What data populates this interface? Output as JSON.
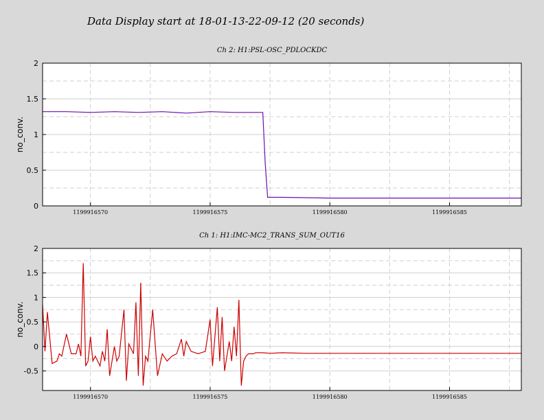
{
  "page": {
    "title": "Data Display start at 18-01-13-22-09-12 (20 seconds)"
  },
  "chart_data": [
    {
      "type": "line",
      "title": "Ch 2: H1:PSL-OSC_PDLOCKDC",
      "ylabel": "no_conv.",
      "xlabel": "",
      "xlim": [
        1199916568,
        1199916588
      ],
      "ylim": [
        0,
        2
      ],
      "xticks": [
        1199916570,
        1199916575,
        1199916580,
        1199916585
      ],
      "xtick_labels": [
        "1199916570",
        "1199916575",
        "1199916580",
        "1199916585"
      ],
      "yticks": [
        0,
        0.5,
        1,
        1.5,
        2
      ],
      "ytick_labels": [
        "0",
        "0.5",
        "1",
        "1.5",
        "2"
      ],
      "grid": true,
      "series": [
        {
          "color": "#6a0dad",
          "x": [
            1199916568,
            1199916569,
            1199916570,
            1199916571,
            1199916572,
            1199916573,
            1199916574,
            1199916575,
            1199916576,
            1199916577.2,
            1199916577.3,
            1199916577.4,
            1199916578,
            1199916580,
            1199916582,
            1199916584,
            1199916586,
            1199916588
          ],
          "y": [
            1.32,
            1.32,
            1.31,
            1.32,
            1.31,
            1.32,
            1.3,
            1.32,
            1.31,
            1.31,
            0.6,
            0.12,
            0.12,
            0.11,
            0.11,
            0.11,
            0.11,
            0.11
          ]
        }
      ]
    },
    {
      "type": "line",
      "title": "Ch 1: H1:IMC-MC2_TRANS_SUM_OUT16",
      "ylabel": "no_conv.",
      "xlabel": "",
      "xlim": [
        1199916568,
        1199916588
      ],
      "ylim": [
        -0.9,
        2
      ],
      "xticks": [
        1199916570,
        1199916575,
        1199916580,
        1199916585
      ],
      "xtick_labels": [
        "1199916570",
        "1199916575",
        "1199916580",
        "1199916585"
      ],
      "yticks": [
        -0.5,
        0,
        0.5,
        1,
        1.5,
        2
      ],
      "ytick_labels": [
        "-0.5",
        "0",
        "0.5",
        "1",
        "1.5",
        "2"
      ],
      "grid": true,
      "series": [
        {
          "color": "#cc0000",
          "x": [
            1199916568,
            1199916568.1,
            1199916568.2,
            1199916568.4,
            1199916568.6,
            1199916568.7,
            1199916568.8,
            1199916569,
            1199916569.2,
            1199916569.4,
            1199916569.5,
            1199916569.6,
            1199916569.7,
            1199916569.8,
            1199916569.9,
            1199916570,
            1199916570.1,
            1199916570.2,
            1199916570.4,
            1199916570.5,
            1199916570.6,
            1199916570.7,
            1199916570.8,
            1199916571,
            1199916571.1,
            1199916571.2,
            1199916571.4,
            1199916571.5,
            1199916571.6,
            1199916571.8,
            1199916571.9,
            1199916572,
            1199916572.1,
            1199916572.2,
            1199916572.3,
            1199916572.4,
            1199916572.6,
            1199916572.8,
            1199916573,
            1199916573.2,
            1199916573.4,
            1199916573.6,
            1199916573.8,
            1199916573.9,
            1199916574,
            1199916574.2,
            1199916574.5,
            1199916574.8,
            1199916575.0,
            1199916575.1,
            1199916575.3,
            1199916575.4,
            1199916575.5,
            1199916575.6,
            1199916575.8,
            1199916575.9,
            1199916576,
            1199916576.1,
            1199916576.2,
            1199916576.3,
            1199916576.4,
            1199916576.5,
            1199916576.6,
            1199916576.7,
            1199916576.8,
            1199916576.9,
            1199916577.0,
            1199916577.2,
            1199916577.5,
            1199916578,
            1199916579,
            1199916580,
            1199916581,
            1199916582,
            1199916583,
            1199916584,
            1199916585,
            1199916586,
            1199916587,
            1199916588
          ],
          "y": [
            0.85,
            -0.1,
            0.7,
            -0.35,
            -0.3,
            -0.15,
            -0.2,
            0.25,
            -0.15,
            -0.15,
            0.05,
            -0.2,
            1.7,
            -0.4,
            -0.3,
            0.2,
            -0.3,
            -0.2,
            -0.4,
            -0.1,
            -0.3,
            0.35,
            -0.6,
            0.0,
            -0.3,
            -0.2,
            0.75,
            -0.7,
            0.05,
            -0.15,
            0.9,
            -0.6,
            1.3,
            -0.8,
            -0.2,
            -0.3,
            0.75,
            -0.6,
            -0.15,
            -0.3,
            -0.2,
            -0.15,
            0.15,
            -0.2,
            0.1,
            -0.1,
            -0.15,
            -0.1,
            0.55,
            -0.4,
            0.8,
            -0.3,
            0.6,
            -0.5,
            0.1,
            -0.3,
            0.4,
            -0.2,
            0.95,
            -0.8,
            -0.3,
            -0.2,
            -0.15,
            -0.15,
            -0.15,
            -0.13,
            -0.13,
            -0.13,
            -0.14,
            -0.13,
            -0.14,
            -0.14,
            -0.14,
            -0.14,
            -0.14,
            -0.14,
            -0.14,
            -0.14,
            -0.14,
            -0.14
          ]
        }
      ]
    }
  ]
}
